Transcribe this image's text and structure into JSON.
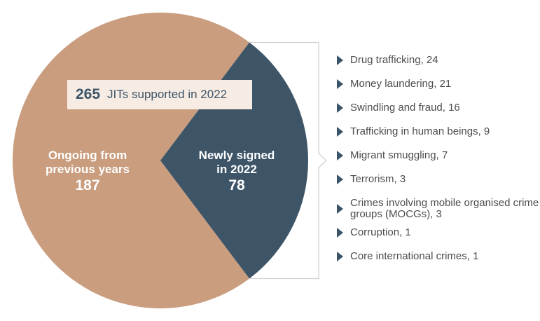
{
  "chart_data": {
    "type": "pie",
    "total": {
      "value": "265",
      "label": "JITs supported in 2022"
    },
    "slices": [
      {
        "label_line1": "Ongoing from",
        "label_line2": "previous years",
        "value": 187,
        "color": "#c99d7e"
      },
      {
        "label_line1": "Newly signed",
        "label_line2": "in 2022",
        "value": 78,
        "color": "#3e5568"
      }
    ],
    "breakdown": [
      {
        "label": "Drug trafficking, 24"
      },
      {
        "label": "Money laundering, 21"
      },
      {
        "label": "Swindling and fraud, 16"
      },
      {
        "label": "Trafficking in human beings, 9"
      },
      {
        "label": "Migrant smuggling, 7"
      },
      {
        "label": "Terrorism, 3"
      },
      {
        "label": "Crimes involving mobile organised crime groups (MOCGs), 3"
      },
      {
        "label": "Corruption, 1"
      },
      {
        "label": "Core international crimes, 1"
      }
    ]
  }
}
